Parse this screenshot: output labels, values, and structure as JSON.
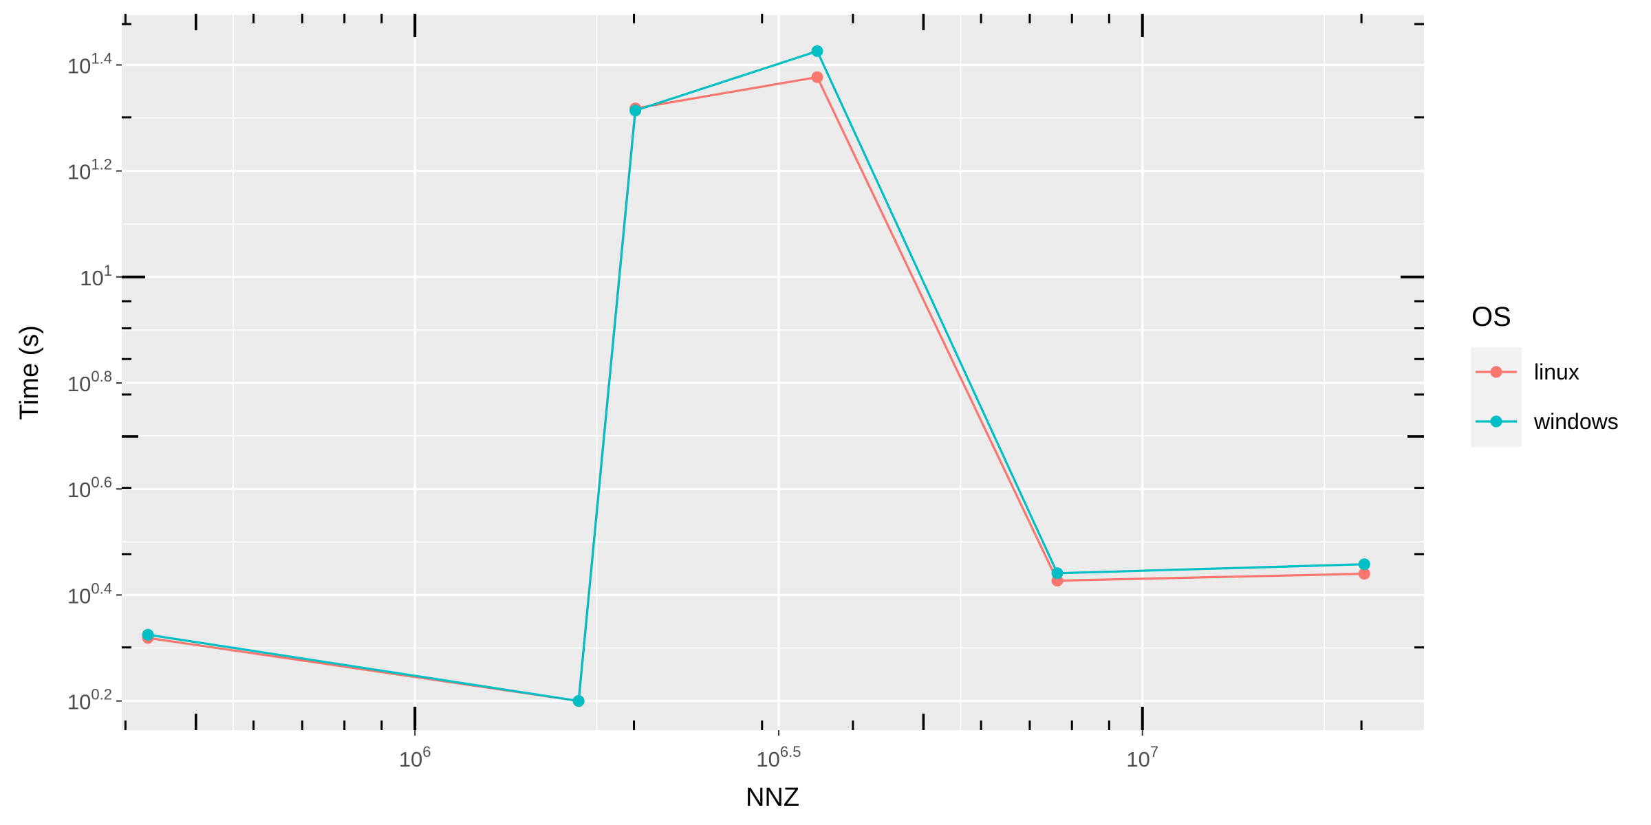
{
  "chart_data": {
    "type": "line",
    "xlabel": "NNZ",
    "ylabel": "Time (s)",
    "x_scale": "log10",
    "y_scale": "log10",
    "xlim": [
      5.597,
      7.387
    ],
    "ylim": [
      0.145,
      1.494
    ],
    "x_ticks": [
      {
        "value": 6,
        "base": "10",
        "exp": "6"
      },
      {
        "value": 6.5,
        "base": "10",
        "exp": "6.5"
      },
      {
        "value": 7,
        "base": "10",
        "exp": "7"
      }
    ],
    "y_ticks": [
      {
        "value": 0.2,
        "base": "10",
        "exp": "0.2"
      },
      {
        "value": 0.4,
        "base": "10",
        "exp": "0.4"
      },
      {
        "value": 0.6,
        "base": "10",
        "exp": "0.6"
      },
      {
        "value": 0.8,
        "base": "10",
        "exp": "0.8"
      },
      {
        "value": 1.0,
        "base": "10",
        "exp": "1"
      },
      {
        "value": 1.2,
        "base": "10",
        "exp": "1.2"
      },
      {
        "value": 1.4,
        "base": "10",
        "exp": "1.4"
      }
    ],
    "grid": true,
    "legend": {
      "title": "OS",
      "position": "right"
    },
    "series": [
      {
        "name": "linux",
        "color": "#F8766D",
        "x": [
          5.633,
          6.225,
          6.303,
          6.553,
          6.883,
          7.305
        ],
        "y": [
          0.319,
          0.2,
          1.318,
          1.377,
          0.427,
          0.44
        ]
      },
      {
        "name": "windows",
        "color": "#00BFC4",
        "x": [
          5.633,
          6.225,
          6.303,
          6.553,
          6.883,
          7.305
        ],
        "y": [
          0.325,
          0.2,
          1.314,
          1.426,
          0.441,
          0.458
        ]
      }
    ]
  }
}
